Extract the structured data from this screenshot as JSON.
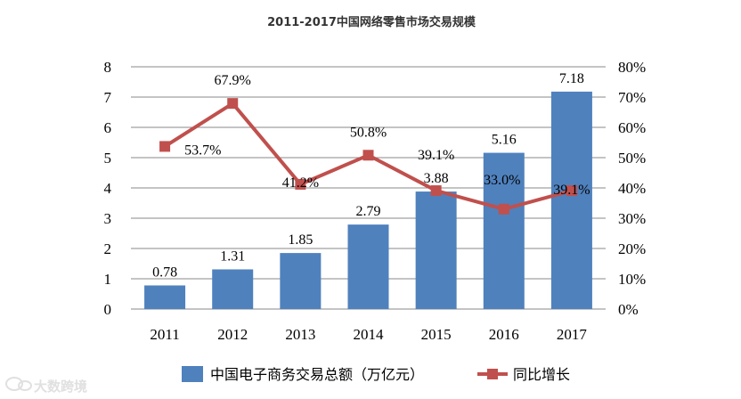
{
  "chart_data": {
    "type": "bar+line",
    "title": "2011-2017中国网络零售市场交易规模",
    "categories": [
      "2011",
      "2012",
      "2013",
      "2014",
      "2015",
      "2016",
      "2017"
    ],
    "series": [
      {
        "name": "中国电子商务交易总额（万亿元）",
        "type": "bar",
        "axis": "left",
        "color": "#4F81BD",
        "values": [
          0.78,
          1.31,
          1.85,
          2.79,
          3.88,
          5.16,
          7.18
        ],
        "labels": [
          "0.78",
          "1.31",
          "1.85",
          "2.79",
          "3.88",
          "5.16",
          "7.18"
        ]
      },
      {
        "name": "同比增长",
        "type": "line",
        "axis": "right",
        "color": "#C0504D",
        "values": [
          53.7,
          67.9,
          41.2,
          50.8,
          39.1,
          33.0,
          39.1
        ],
        "labels": [
          "53.7%",
          "67.9%",
          "41.2%",
          "50.8%",
          "39.1%",
          "33.0%",
          "39.1%"
        ]
      }
    ],
    "y_left": {
      "range": [
        0,
        8
      ],
      "ticks": [
        "0",
        "1",
        "2",
        "3",
        "4",
        "5",
        "6",
        "7",
        "8"
      ]
    },
    "y_right": {
      "range": [
        0,
        80
      ],
      "ticks": [
        "0%",
        "10%",
        "20%",
        "30%",
        "40%",
        "50%",
        "60%",
        "70%",
        "80%"
      ]
    },
    "grid": true,
    "legend_position": "bottom"
  },
  "watermark": {
    "text": "大数跨境",
    "icon": "chat-bubble-logo"
  }
}
